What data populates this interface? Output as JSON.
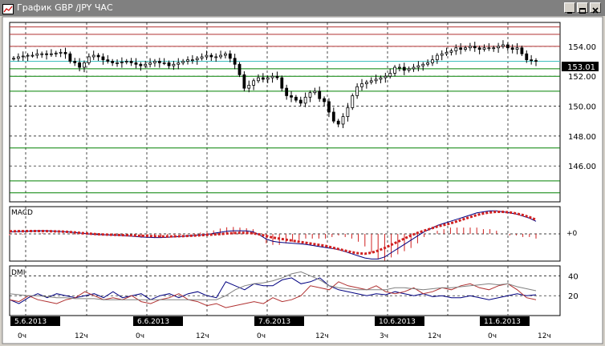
{
  "window": {
    "title": "График GBP /JPY  ЧАС",
    "minimize_icon": "minimize-icon",
    "restore_icon": "restore-icon",
    "close_icon": "close-icon",
    "titlebar_color": "#808080"
  },
  "chart_data": [
    {
      "type": "candlestick",
      "title": "",
      "ylim": [
        143.6,
        155.6
      ],
      "y_ticks": [
        "154.00",
        "152.00",
        "150.00",
        "148.00",
        "146.00"
      ],
      "current_price": "153.01",
      "hlines": [
        {
          "value": 155.3,
          "color": "#b03030"
        },
        {
          "value": 154.8,
          "color": "#b03030"
        },
        {
          "value": 154.0,
          "color": "#b03030"
        },
        {
          "value": 153.0,
          "color": "#40c0c0"
        },
        {
          "value": 152.5,
          "color": "#008000"
        },
        {
          "value": 152.0,
          "color": "#008000"
        },
        {
          "value": 151.0,
          "color": "#008000"
        },
        {
          "value": 147.2,
          "color": "#008000"
        },
        {
          "value": 145.0,
          "color": "#008000"
        },
        {
          "value": 144.2,
          "color": "#008000"
        }
      ],
      "close": [
        153.2,
        153.3,
        153.35,
        153.4,
        153.4,
        153.5,
        153.5,
        153.45,
        153.5,
        153.55,
        153.6,
        153.5,
        153.0,
        152.9,
        152.6,
        152.9,
        153.3,
        153.4,
        153.3,
        153.1,
        153.0,
        152.9,
        152.9,
        152.95,
        153.0,
        152.9,
        152.8,
        152.7,
        152.8,
        152.9,
        153.0,
        152.9,
        152.9,
        152.7,
        152.8,
        152.9,
        153.0,
        153.1,
        153.1,
        153.2,
        153.3,
        153.4,
        153.3,
        153.3,
        153.4,
        153.5,
        153.2,
        152.8,
        152.1,
        151.2,
        151.4,
        151.7,
        151.9,
        151.8,
        151.9,
        152.0,
        151.9,
        151.2,
        150.7,
        150.6,
        150.4,
        150.2,
        150.6,
        150.9,
        151.0,
        150.5,
        150.3,
        149.6,
        149.0,
        148.8,
        149.3,
        149.9,
        150.7,
        151.3,
        151.5,
        151.6,
        151.7,
        151.8,
        151.9,
        152.0,
        152.2,
        152.6,
        152.6,
        152.4,
        152.5,
        152.6,
        152.7,
        152.8,
        152.9,
        153.1,
        153.4,
        153.5,
        153.6,
        153.7,
        153.9,
        153.8,
        153.9,
        154.0,
        153.9,
        153.8,
        153.9,
        153.9,
        153.9,
        154.0,
        154.1,
        153.9,
        153.8,
        153.9,
        153.5,
        153.1,
        153.05,
        153.01
      ],
      "x_ticks": [
        "0ч",
        "12ч",
        "0ч",
        "12ч",
        "0ч",
        "12ч",
        "3ч",
        "12ч",
        "0ч",
        "12ч"
      ],
      "date_flags": [
        "5.6.2013",
        "6.6.2013",
        "7.6.2013",
        "10.6.2013",
        "11.6.2013"
      ]
    },
    {
      "type": "line",
      "title": "MACD",
      "zero_label": "+0",
      "series": [
        {
          "color": "#000080",
          "values": [
            0.2,
            0.22,
            0.24,
            0.26,
            0.28,
            0.3,
            0.28,
            0.25,
            0.22,
            0.18,
            0.12,
            0.05,
            0.0,
            -0.05,
            -0.08,
            -0.1,
            -0.12,
            -0.15,
            -0.2,
            -0.25,
            -0.3,
            -0.32,
            -0.35,
            -0.35,
            -0.32,
            -0.28,
            -0.25,
            -0.2,
            -0.15,
            -0.1,
            -0.05,
            0.05,
            0.15,
            0.25,
            0.3,
            0.3,
            0.28,
            0.2,
            -0.1,
            -0.5,
            -0.7,
            -0.8,
            -0.85,
            -0.9,
            -0.95,
            -1.0,
            -1.1,
            -1.2,
            -1.3,
            -1.4,
            -1.5,
            -1.7,
            -1.9,
            -2.1,
            -2.3,
            -2.4,
            -2.4,
            -2.2,
            -1.8,
            -1.4,
            -1.0,
            -0.6,
            -0.2,
            0.2,
            0.5,
            0.8,
            1.0,
            1.2,
            1.4,
            1.6,
            1.8,
            2.0,
            2.1,
            2.2,
            2.2,
            2.1,
            2.0,
            1.9,
            1.7,
            1.5,
            1.2
          ]
        },
        {
          "color": "#d02020",
          "dotted": true,
          "values": [
            0.25,
            0.25,
            0.26,
            0.27,
            0.27,
            0.27,
            0.26,
            0.24,
            0.22,
            0.18,
            0.14,
            0.08,
            0.02,
            -0.02,
            -0.05,
            -0.08,
            -0.1,
            -0.12,
            -0.14,
            -0.16,
            -0.18,
            -0.2,
            -0.22,
            -0.24,
            -0.25,
            -0.24,
            -0.22,
            -0.2,
            -0.17,
            -0.14,
            -0.1,
            -0.06,
            -0.02,
            0.04,
            0.08,
            0.1,
            0.1,
            0.05,
            -0.05,
            -0.2,
            -0.35,
            -0.45,
            -0.55,
            -0.65,
            -0.75,
            -0.85,
            -0.95,
            -1.05,
            -1.15,
            -1.3,
            -1.45,
            -1.6,
            -1.75,
            -1.85,
            -1.9,
            -1.8,
            -1.6,
            -1.35,
            -1.05,
            -0.75,
            -0.45,
            -0.15,
            0.1,
            0.3,
            0.5,
            0.7,
            0.85,
            1.0,
            1.2,
            1.4,
            1.6,
            1.8,
            1.95,
            2.05,
            2.1,
            2.1,
            2.05,
            1.95,
            1.8,
            1.6,
            1.35
          ]
        }
      ]
    },
    {
      "type": "line",
      "title": "DMI",
      "y_ticks": [
        "40",
        "20"
      ],
      "series": [
        {
          "color": "#000080",
          "values": [
            16,
            12,
            18,
            22,
            18,
            22,
            20,
            18,
            20,
            22,
            18,
            24,
            18,
            20,
            22,
            16,
            20,
            22,
            18,
            22,
            24,
            20,
            18,
            34,
            30,
            26,
            32,
            30,
            30,
            36,
            38,
            32,
            34,
            38,
            30,
            26,
            24,
            22,
            20,
            22,
            21,
            24,
            22,
            20,
            22,
            19,
            20,
            18,
            18,
            20,
            18,
            16,
            18,
            20,
            22,
            20,
            21
          ]
        },
        {
          "color": "#b03030",
          "values": [
            16,
            14,
            20,
            16,
            14,
            12,
            16,
            18,
            24,
            20,
            16,
            18,
            16,
            20,
            14,
            12,
            16,
            18,
            22,
            16,
            14,
            10,
            12,
            8,
            10,
            12,
            14,
            12,
            18,
            14,
            16,
            20,
            30,
            28,
            26,
            34,
            30,
            28,
            26,
            30,
            24,
            22,
            24,
            28,
            22,
            24,
            28,
            26,
            30,
            32,
            28,
            26,
            30,
            32,
            26,
            18,
            16
          ]
        },
        {
          "color": "#808080",
          "values": [
            22,
            21,
            20,
            20,
            19,
            18,
            18,
            17,
            17,
            17,
            16,
            16,
            16,
            16,
            16,
            16,
            16,
            16,
            16,
            16,
            16,
            16,
            16,
            20,
            26,
            30,
            32,
            33,
            35,
            38,
            42,
            44,
            40,
            36,
            30,
            28,
            27,
            26,
            26,
            26,
            26,
            28,
            28,
            27,
            26,
            27,
            28,
            28,
            29,
            30,
            31,
            32,
            31,
            32,
            29,
            27,
            25
          ]
        }
      ]
    }
  ]
}
